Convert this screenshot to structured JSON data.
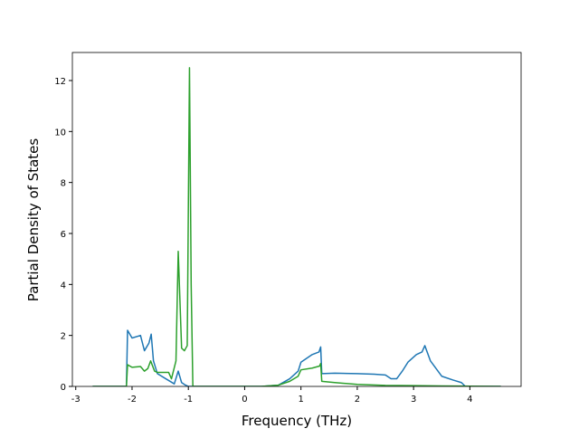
{
  "chart_data": {
    "type": "line",
    "xlabel": "Frequency (THz)",
    "ylabel": "Partial Density of States",
    "xlim": [
      -3.06,
      4.91
    ],
    "ylim": [
      0,
      13.1
    ],
    "xticks": [
      -3,
      -2,
      -1,
      0,
      1,
      2,
      3,
      4
    ],
    "yticks": [
      0,
      2,
      4,
      6,
      8,
      10,
      12
    ],
    "series": [
      {
        "color": "#1f77b4",
        "x": [
          -2.7,
          -2.1,
          -2.08,
          -2.0,
          -1.85,
          -1.78,
          -1.7,
          -1.66,
          -1.62,
          -1.55,
          -1.4,
          -1.25,
          -1.18,
          -1.12,
          -1.05,
          -1.0,
          0.3,
          0.6,
          0.8,
          0.95,
          1.0,
          1.1,
          1.2,
          1.32,
          1.35,
          1.37,
          1.6,
          2.0,
          2.3,
          2.5,
          2.6,
          2.7,
          2.8,
          2.9,
          3.05,
          3.15,
          3.2,
          3.3,
          3.5,
          3.7,
          3.85,
          3.92,
          4.55
        ],
        "values": [
          0,
          0,
          2.2,
          1.9,
          2.0,
          1.4,
          1.7,
          2.05,
          1.0,
          0.5,
          0.3,
          0.1,
          0.6,
          0.15,
          0.05,
          0,
          0,
          0.05,
          0.3,
          0.6,
          0.95,
          1.1,
          1.25,
          1.35,
          1.55,
          0.5,
          0.52,
          0.5,
          0.48,
          0.45,
          0.3,
          0.3,
          0.6,
          0.95,
          1.25,
          1.35,
          1.6,
          1.0,
          0.4,
          0.25,
          0.15,
          0,
          0
        ]
      },
      {
        "color": "#2ca02c",
        "x": [
          -2.7,
          -2.1,
          -2.08,
          -2.0,
          -1.85,
          -1.78,
          -1.72,
          -1.67,
          -1.6,
          -1.55,
          -1.35,
          -1.3,
          -1.22,
          -1.18,
          -1.12,
          -1.07,
          -1.02,
          -0.98,
          -0.95,
          -0.92,
          0.3,
          0.6,
          0.8,
          0.95,
          1.0,
          1.2,
          1.33,
          1.35,
          1.37,
          1.6,
          2.0,
          2.5,
          3.0,
          3.5,
          4.0,
          4.55
        ],
        "values": [
          0,
          0,
          0.85,
          0.75,
          0.78,
          0.6,
          0.7,
          1.0,
          0.6,
          0.55,
          0.55,
          0.3,
          1.0,
          5.3,
          1.5,
          1.4,
          1.6,
          12.5,
          4,
          0,
          0,
          0.05,
          0.2,
          0.4,
          0.65,
          0.72,
          0.8,
          0.9,
          0.2,
          0.15,
          0.08,
          0.04,
          0.03,
          0.02,
          0.01,
          0
        ]
      }
    ]
  }
}
